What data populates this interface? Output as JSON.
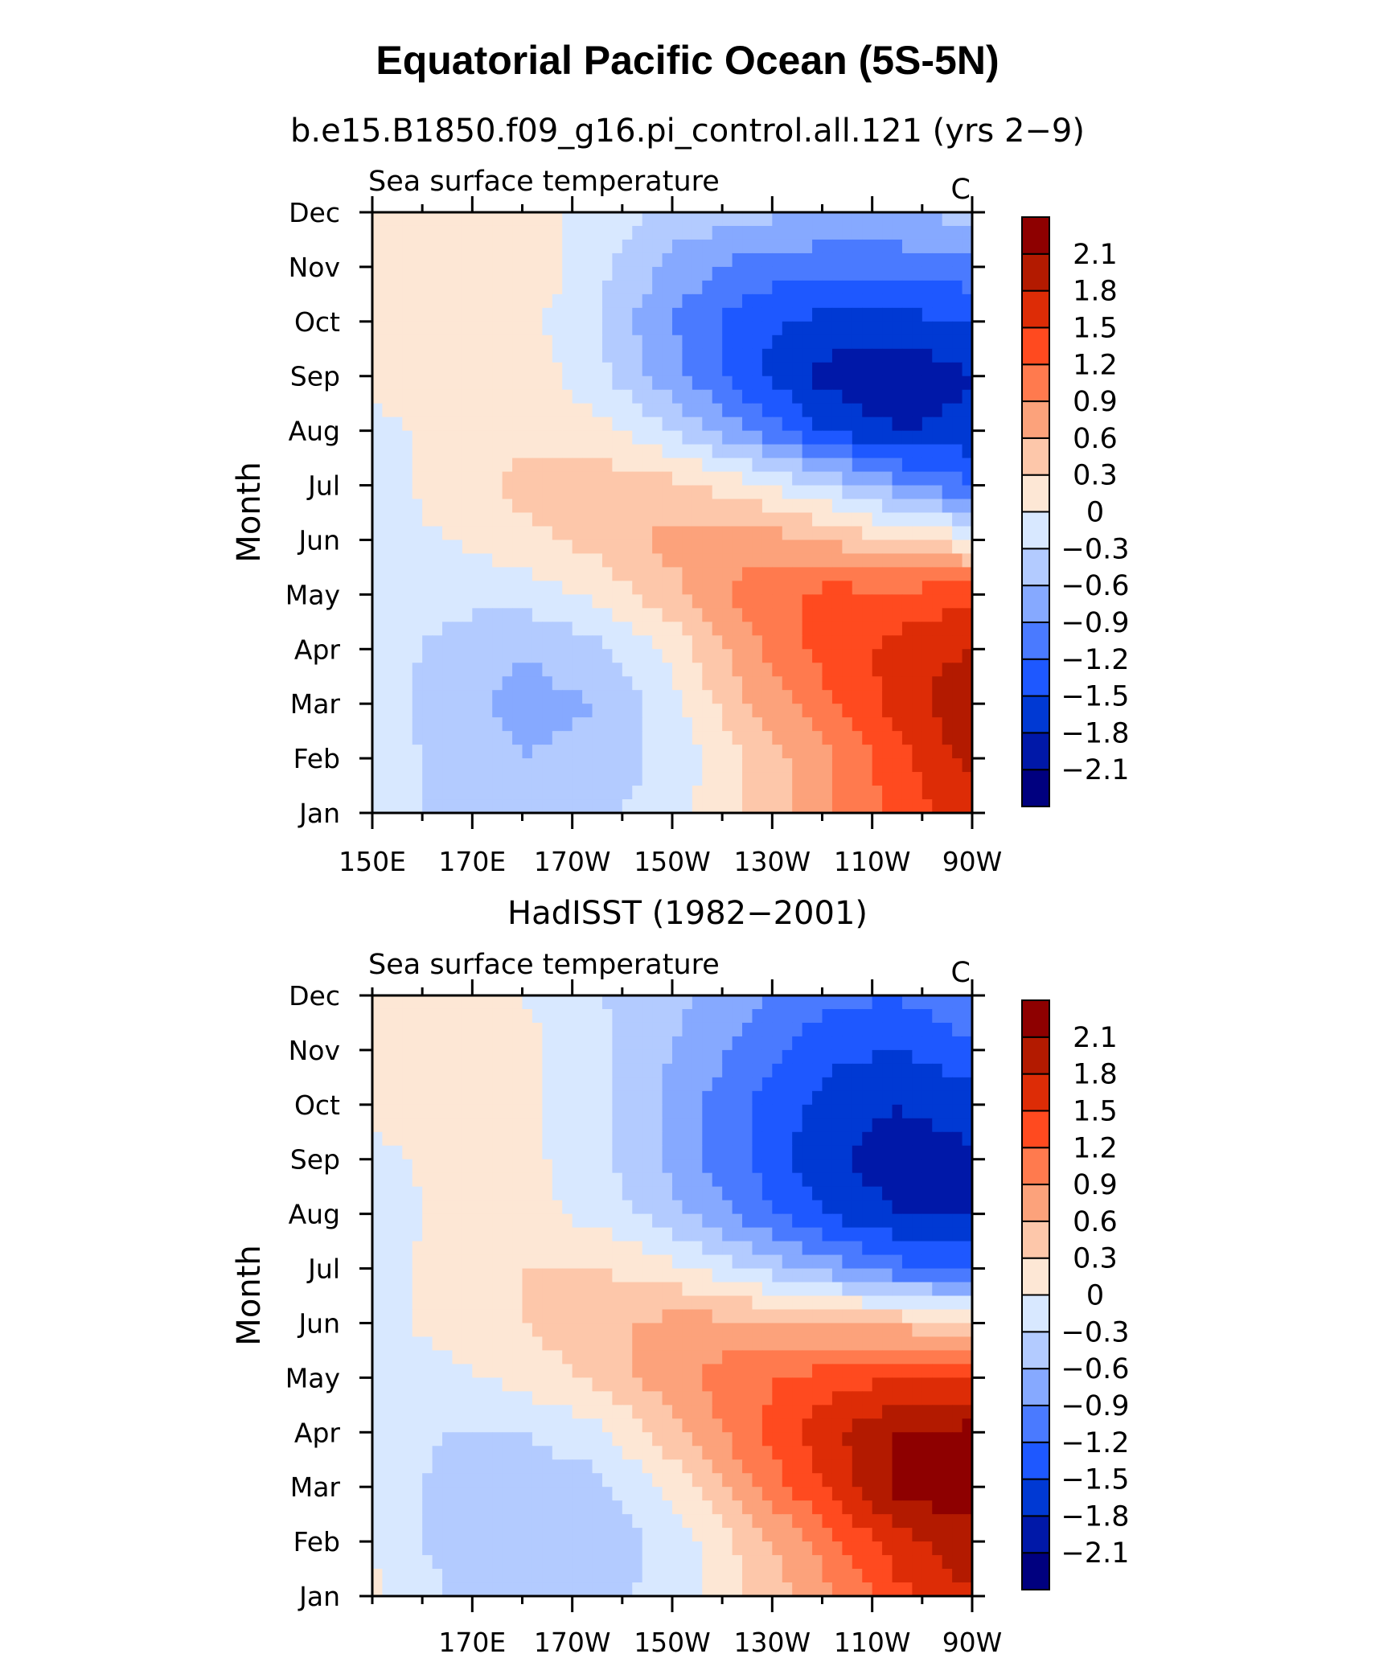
{
  "figure": {
    "title": "Equatorial Pacific Ocean (5S-5N)",
    "colorbar_colors": [
      "#00007f",
      "#0018a8",
      "#0039d3",
      "#1e58ff",
      "#4a7aff",
      "#86a9ff",
      "#b3cbff",
      "#d8e8ff",
      "#fde7d5",
      "#fdc7aa",
      "#fca27b",
      "#ff7a4e",
      "#ff4a1f",
      "#dd2c06",
      "#b31a00",
      "#8e0000"
    ],
    "colorbar_labels": [
      "-2.1",
      "-1.8",
      "-1.5",
      "-1.2",
      "-0.9",
      "-0.6",
      "-0.3",
      "0",
      "0.3",
      "0.6",
      "0.9",
      "1.2",
      "1.5",
      "1.8",
      "2.1"
    ]
  },
  "chart_data": [
    {
      "type": "heatmap",
      "panel_title": "b.e15.B1850.f09_g16.pi_control.all.121 (yrs 2−9)",
      "left_label": "Sea surface temperature",
      "units": "C",
      "ylabel": "Month",
      "y_ticks": [
        "Jan",
        "Feb",
        "Mar",
        "Apr",
        "May",
        "Jun",
        "Jul",
        "Aug",
        "Sep",
        "Oct",
        "Nov",
        "Dec"
      ],
      "x_ticks": [
        "150E",
        "170E",
        "170W",
        "150W",
        "130W",
        "110W",
        "90W"
      ],
      "x_range_lon": [
        150,
        270
      ],
      "x_tick_lon": [
        150,
        170,
        190,
        210,
        230,
        250,
        270
      ],
      "levels": [
        -2.1,
        -1.8,
        -1.5,
        -1.2,
        -0.9,
        -0.6,
        -0.3,
        0,
        0.3,
        0.6,
        0.9,
        1.2,
        1.5,
        1.8,
        2.1
      ],
      "grid_lon": [
        150,
        165,
        180,
        195,
        210,
        225,
        240,
        255,
        270
      ],
      "z": [
        [
          -0.1,
          -0.4,
          -0.5,
          -0.4,
          -0.1,
          0.3,
          0.8,
          1.3,
          1.7
        ],
        [
          -0.1,
          -0.4,
          -0.6,
          -0.5,
          -0.2,
          0.3,
          0.8,
          1.4,
          1.9
        ],
        [
          -0.1,
          -0.5,
          -0.7,
          -0.6,
          -0.1,
          0.6,
          1.1,
          1.6,
          2.1
        ],
        [
          -0.1,
          -0.4,
          -0.6,
          -0.4,
          0.1,
          0.8,
          1.3,
          1.6,
          1.8
        ],
        [
          -0.1,
          -0.2,
          -0.2,
          0.1,
          0.5,
          1.0,
          1.3,
          1.3,
          1.4
        ],
        [
          -0.1,
          0.0,
          0.2,
          0.4,
          0.7,
          0.8,
          0.6,
          0.3,
          0.1
        ],
        [
          -0.1,
          0.1,
          0.4,
          0.5,
          0.4,
          0.1,
          -0.3,
          -0.8,
          -1.2
        ],
        [
          -0.1,
          0.1,
          0.2,
          0.1,
          -0.3,
          -0.9,
          -1.5,
          -1.8,
          -1.7
        ],
        [
          0.1,
          0.2,
          0.2,
          -0.2,
          -0.8,
          -1.4,
          -1.9,
          -2.1,
          -1.8
        ],
        [
          0.1,
          0.2,
          0.1,
          -0.3,
          -0.9,
          -1.4,
          -1.6,
          -1.6,
          -1.5
        ],
        [
          0.1,
          0.2,
          0.3,
          -0.2,
          -0.7,
          -1.0,
          -1.1,
          -1.1,
          -1.0
        ],
        [
          0.1,
          0.1,
          0.1,
          -0.1,
          -0.4,
          -0.5,
          -0.6,
          -0.6,
          -0.5
        ]
      ]
    },
    {
      "type": "heatmap",
      "panel_title": "HadISST (1982−2001)",
      "left_label": "Sea surface temperature",
      "units": "C",
      "ylabel": "Month",
      "y_ticks": [
        "Jan",
        "Feb",
        "Mar",
        "Apr",
        "May",
        "Jun",
        "Jul",
        "Aug",
        "Sep",
        "Oct",
        "Nov",
        "Dec"
      ],
      "x_ticks": [
        "170E",
        "170W",
        "150W",
        "130W",
        "110W",
        "90W"
      ],
      "x_range_lon": [
        150,
        270
      ],
      "x_tick_lon": [
        170,
        190,
        210,
        230,
        250,
        270
      ],
      "levels": [
        -2.1,
        -1.8,
        -1.5,
        -1.2,
        -0.9,
        -0.6,
        -0.3,
        0,
        0.3,
        0.6,
        0.9,
        1.2,
        1.5,
        1.8,
        2.1
      ],
      "grid_lon": [
        150,
        165,
        180,
        195,
        210,
        225,
        240,
        255,
        270
      ],
      "z": [
        [
          0.1,
          -0.3,
          -0.4,
          -0.4,
          -0.2,
          0.3,
          0.8,
          1.4,
          1.8
        ],
        [
          -0.1,
          -0.4,
          -0.5,
          -0.5,
          -0.2,
          0.4,
          1.0,
          1.7,
          2.0
        ],
        [
          -0.1,
          -0.4,
          -0.5,
          -0.4,
          0.1,
          0.8,
          1.5,
          2.2,
          2.3
        ],
        [
          -0.1,
          -0.3,
          -0.3,
          -0.1,
          0.5,
          1.1,
          1.7,
          2.1,
          2.2
        ],
        [
          -0.1,
          -0.1,
          0.1,
          0.4,
          0.8,
          1.1,
          1.3,
          1.5,
          1.5
        ],
        [
          -0.1,
          0.1,
          0.3,
          0.5,
          0.7,
          0.7,
          0.6,
          0.5,
          0.3
        ],
        [
          -0.1,
          0.1,
          0.3,
          0.3,
          0.1,
          -0.3,
          -0.7,
          -1.1,
          -1.3
        ],
        [
          -0.2,
          0.1,
          0.1,
          -0.1,
          -0.5,
          -1.0,
          -1.5,
          -1.8,
          -1.8
        ],
        [
          -0.1,
          0.1,
          0.1,
          -0.2,
          -0.7,
          -1.2,
          -1.7,
          -2.0,
          -1.9
        ],
        [
          0.1,
          0.1,
          0.1,
          -0.2,
          -0.7,
          -1.2,
          -1.6,
          -1.8,
          -1.6
        ],
        [
          0.1,
          0.1,
          0.1,
          -0.2,
          -0.6,
          -1.0,
          -1.4,
          -1.5,
          -1.3
        ],
        [
          0.1,
          0.1,
          0.0,
          -0.3,
          -0.5,
          -0.8,
          -1.1,
          -1.2,
          -0.9
        ]
      ]
    }
  ]
}
